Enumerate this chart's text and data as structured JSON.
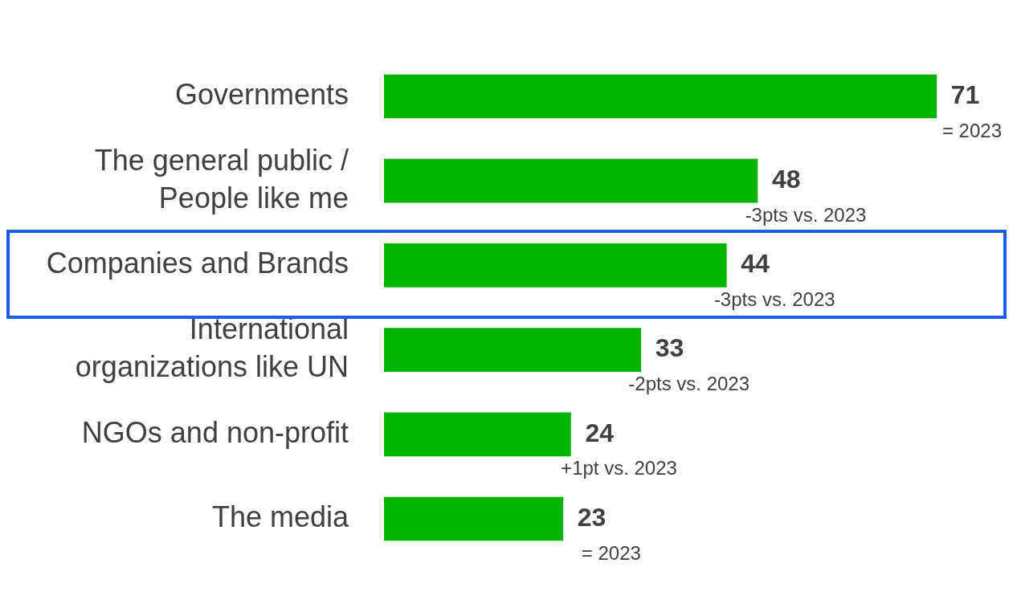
{
  "chart_data": {
    "type": "bar",
    "orientation": "horizontal",
    "categories": [
      "Governments",
      "The general public / People like me",
      "Companies and Brands",
      "International organizations like UN",
      "NGOs and non-profit",
      "The media"
    ],
    "values": [
      71,
      48,
      44,
      33,
      24,
      23
    ],
    "color": "#00b400",
    "tick_labels": "y",
    "legend": false,
    "data_labels": true,
    "annotations": [
      "= 2023",
      "-3pts vs. 2023",
      "-3pts vs. 2023",
      "-2pts vs. 2023",
      "+1pt vs. 2023",
      "= 2023"
    ]
  }
}
